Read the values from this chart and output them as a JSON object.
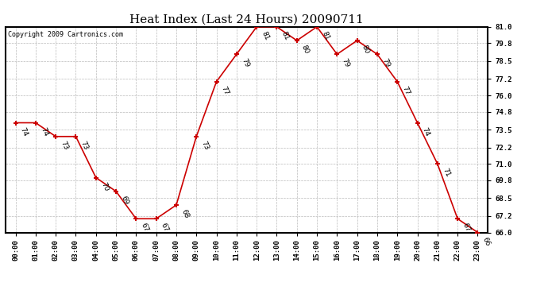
{
  "title": "Heat Index (Last 24 Hours) 20090711",
  "copyright": "Copyright 2009 Cartronics.com",
  "hours": [
    "00:00",
    "01:00",
    "02:00",
    "03:00",
    "04:00",
    "05:00",
    "06:00",
    "07:00",
    "08:00",
    "09:00",
    "10:00",
    "11:00",
    "12:00",
    "13:00",
    "14:00",
    "15:00",
    "16:00",
    "17:00",
    "18:00",
    "19:00",
    "20:00",
    "21:00",
    "22:00",
    "23:00"
  ],
  "values": [
    74,
    74,
    73,
    73,
    70,
    69,
    67,
    67,
    68,
    73,
    77,
    79,
    81,
    81,
    80,
    81,
    79,
    80,
    79,
    77,
    74,
    71,
    67,
    66
  ],
  "line_color": "#cc0000",
  "marker_color": "#cc0000",
  "bg_color": "#ffffff",
  "grid_color": "#bbbbbb",
  "title_fontsize": 11,
  "copyright_fontsize": 6,
  "label_fontsize": 6.5,
  "tick_fontsize": 6.5,
  "ylim_min": 66.0,
  "ylim_max": 81.0,
  "yticks": [
    66.0,
    67.2,
    68.5,
    69.8,
    71.0,
    72.2,
    73.5,
    74.8,
    76.0,
    77.2,
    78.5,
    79.8,
    81.0
  ]
}
